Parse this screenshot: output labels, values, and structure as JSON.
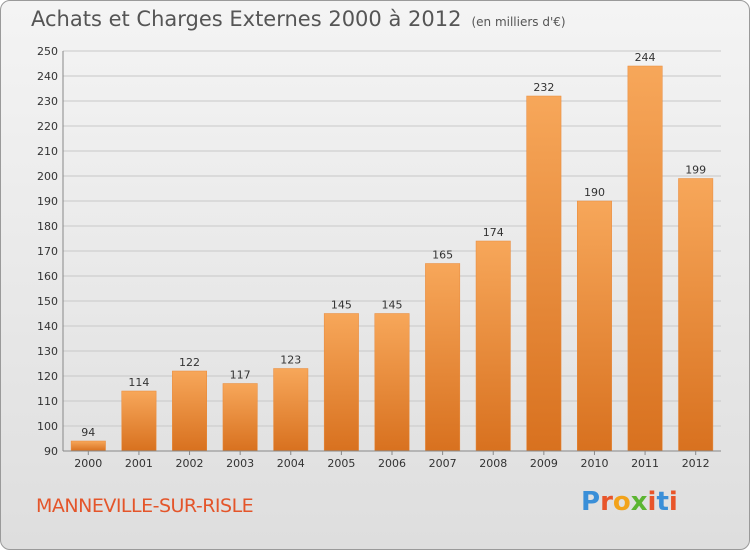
{
  "header": {
    "title": "Achats et Charges Externes 2000 à 2012",
    "unit": "(en milliers d'€)"
  },
  "footer": {
    "town": "MANNEVILLE-SUR-RISLE",
    "logo": "Proxiti"
  },
  "colors": {
    "bar_top": "#f7a75a",
    "bar_bottom": "#d8711f",
    "town": "#e4552a"
  },
  "chart_data": {
    "type": "bar",
    "title": "Achats et Charges Externes 2000 à 2012",
    "categories": [
      "2000",
      "2001",
      "2002",
      "2003",
      "2004",
      "2005",
      "2006",
      "2007",
      "2008",
      "2009",
      "2010",
      "2011",
      "2012"
    ],
    "values": [
      94,
      114,
      122,
      117,
      123,
      145,
      145,
      165,
      174,
      232,
      190,
      244,
      199
    ],
    "ylim": [
      90,
      250
    ],
    "yticks": [
      90,
      100,
      110,
      120,
      130,
      140,
      150,
      160,
      170,
      180,
      190,
      200,
      210,
      220,
      230,
      240,
      250
    ],
    "grid": true,
    "legend": "none"
  }
}
